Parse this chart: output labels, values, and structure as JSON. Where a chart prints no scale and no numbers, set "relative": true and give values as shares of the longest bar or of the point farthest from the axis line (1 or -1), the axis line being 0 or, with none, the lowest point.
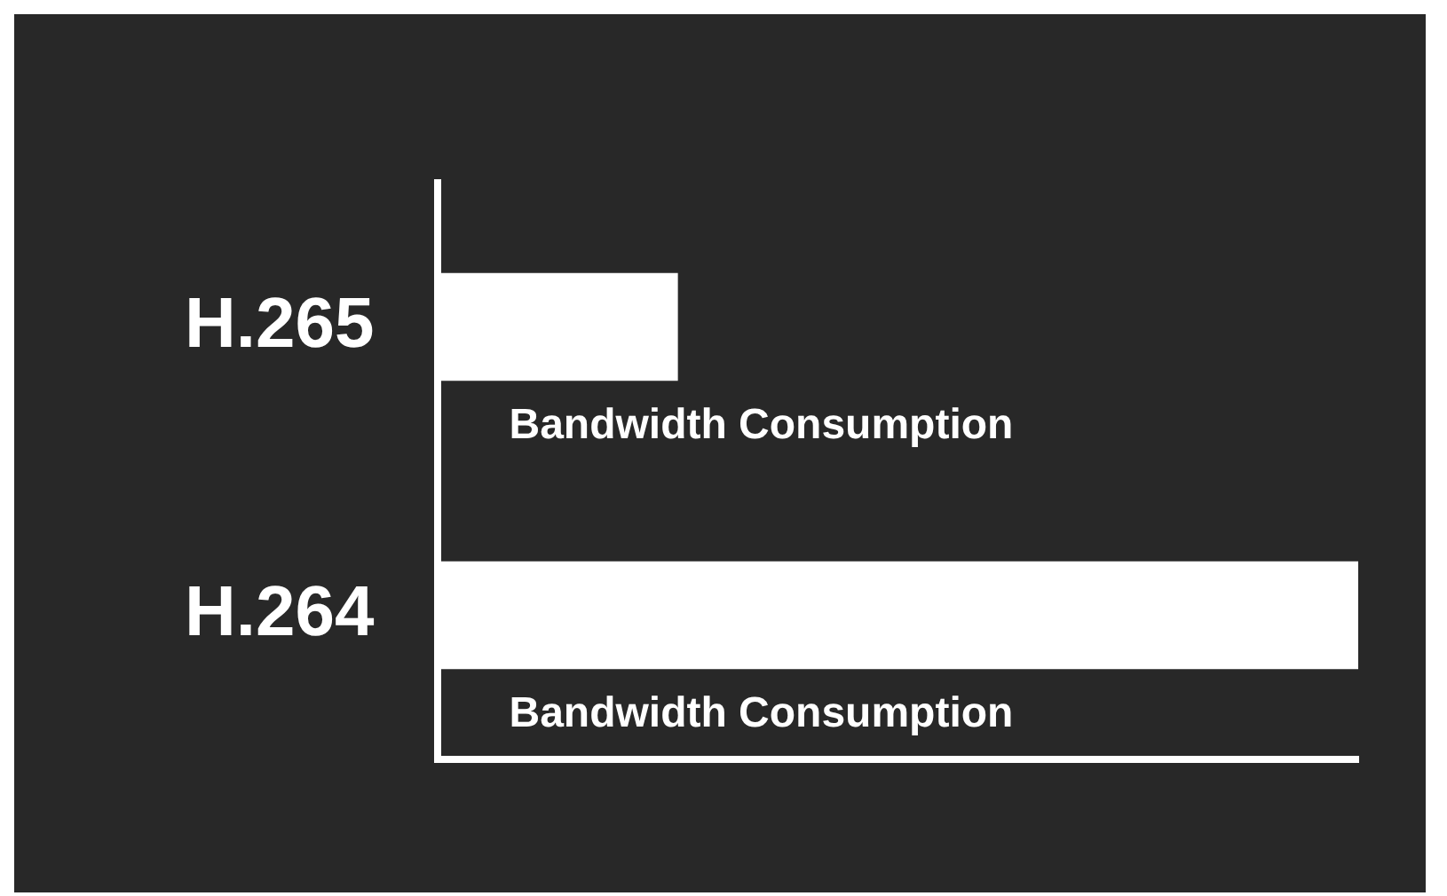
{
  "chart_data": {
    "type": "bar",
    "orientation": "horizontal",
    "relative": true,
    "categories": [
      "H.265",
      "H.264"
    ],
    "values": [
      0.26,
      1
    ],
    "color": "#ffffff",
    "annotations": [
      "Bandwidth Consumption",
      "Bandwidth Consumption"
    ],
    "grid": false,
    "legend": false
  }
}
